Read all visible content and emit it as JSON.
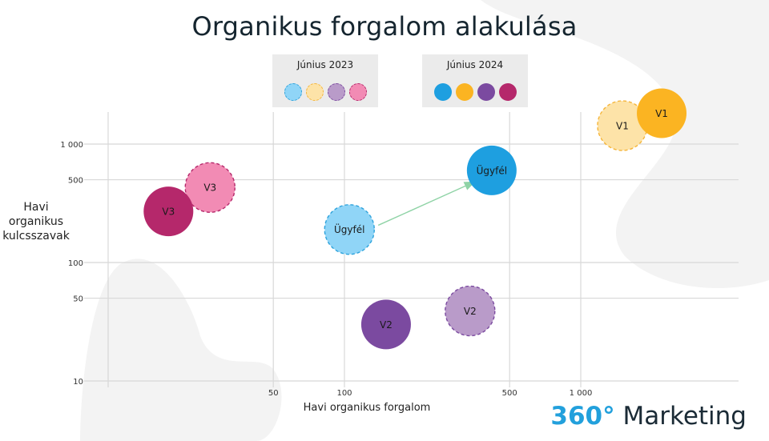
{
  "header": {
    "title": "Organikus forgalom alakulása"
  },
  "legend": {
    "group_old": {
      "label": "Június 2023",
      "colors": [
        "#90d5f7",
        "#fde3a8",
        "#b99bc9",
        "#f28bb4"
      ]
    },
    "group_new": {
      "label": "Június 2024",
      "colors": [
        "#1e9fe0",
        "#fbb422",
        "#7b4aa0",
        "#b5286b"
      ]
    }
  },
  "brand": {
    "number": "360°",
    "word": "Marketing"
  },
  "chart_data": {
    "type": "scatter",
    "title": "Organikus forgalom alakulása",
    "xlabel": "Havi organikus forgalom",
    "ylabel": "Havi organikus kulcsszavak",
    "x_scale": "log",
    "y_scale": "log",
    "xlim": [
      10,
      2500
    ],
    "ylim": [
      10,
      2000
    ],
    "x_ticks": [
      {
        "value": 50,
        "label": "50"
      },
      {
        "value": 100,
        "label": "100"
      },
      {
        "value": 500,
        "label": "500"
      },
      {
        "value": 1000,
        "label": "1 000"
      }
    ],
    "y_ticks": [
      {
        "value": 10,
        "label": "10"
      },
      {
        "value": 50,
        "label": "50"
      },
      {
        "value": 100,
        "label": "100"
      },
      {
        "value": 500,
        "label": "500"
      },
      {
        "value": 1000,
        "label": "1 000"
      }
    ],
    "grid": true,
    "series": [
      {
        "name": "Június 2023",
        "style": "dashed",
        "points": [
          {
            "label": "Ügyfél",
            "x": 105,
            "y": 190,
            "color": "#90d5f7",
            "stroke": "#2ea3dc"
          },
          {
            "label": "V1",
            "x": 1500,
            "y": 1430,
            "color": "#fde3a8",
            "stroke": "#f5b53a"
          },
          {
            "label": "V2",
            "x": 340,
            "y": 39,
            "color": "#b99bc9",
            "stroke": "#7b4aa0"
          },
          {
            "label": "V3",
            "x": 27,
            "y": 430,
            "color": "#f28bb4",
            "stroke": "#b5286b"
          }
        ]
      },
      {
        "name": "Június 2024",
        "style": "solid",
        "points": [
          {
            "label": "Ügyfél",
            "x": 420,
            "y": 600,
            "color": "#1e9fe0"
          },
          {
            "label": "V1",
            "x": 2200,
            "y": 1820,
            "color": "#fbb422"
          },
          {
            "label": "V2",
            "x": 150,
            "y": 30,
            "color": "#7b4aa0"
          },
          {
            "label": "V3",
            "x": 18,
            "y": 270,
            "color": "#b5286b"
          }
        ]
      }
    ],
    "annotations": [
      {
        "type": "arrow",
        "from": [
          110,
          200
        ],
        "to": [
          355,
          510
        ],
        "color": "#8fd3a6"
      }
    ]
  }
}
